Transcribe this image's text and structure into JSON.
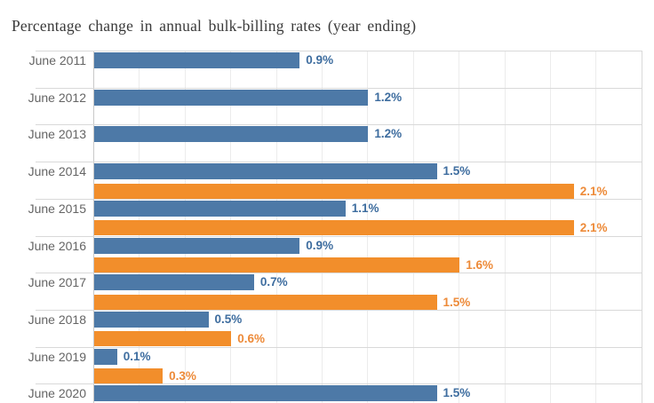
{
  "chart_data": {
    "type": "bar",
    "orientation": "horizontal",
    "title": "Percentage change in annual bulk-billing rates (year ending)",
    "categories": [
      "June 2011",
      "June 2012",
      "June 2013",
      "June 2014",
      "June 2015",
      "June 2016",
      "June 2017",
      "June 2018",
      "June 2019",
      "June 2020"
    ],
    "series": [
      {
        "name": "series-blue",
        "color": "#4d79a7",
        "label_color": "#3e6d9f",
        "values": [
          0.9,
          1.2,
          1.2,
          1.5,
          1.1,
          0.9,
          0.7,
          0.5,
          0.1,
          1.5
        ],
        "labels": [
          "0.9%",
          "1.2%",
          "1.2%",
          "1.5%",
          "1.1%",
          "0.9%",
          "0.7%",
          "0.5%",
          "0.1%",
          "1.5%"
        ]
      },
      {
        "name": "series-orange",
        "color": "#f28e2b",
        "label_color": "#ed8a38",
        "values": [
          null,
          null,
          null,
          2.1,
          2.1,
          1.6,
          1.5,
          0.6,
          0.3,
          null
        ],
        "labels": [
          null,
          null,
          null,
          "2.1%",
          "2.1%",
          "1.6%",
          "1.5%",
          "0.6%",
          "0.3%",
          null
        ]
      }
    ],
    "value_suffix": "%",
    "xlim": [
      0,
      2.45
    ],
    "gridline_step": 0.2,
    "grid": true,
    "legend": "none",
    "colors": {
      "background": "#ffffff",
      "title_text": "#3a3a3a",
      "category_label": "#646464",
      "gridline": "#ececec",
      "separator": "#d9d9d9",
      "axis_line": "#c9c9c9"
    }
  }
}
